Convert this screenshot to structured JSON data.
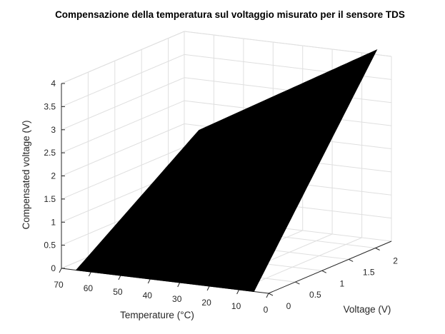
{
  "chart_data": {
    "type": "surface",
    "title": "Compensazione della temperatura sul voltaggio misurato per il sensore TDS",
    "xlabel": "Voltage (V)",
    "ylabel": "Temperature (°C)",
    "zlabel": "Compensated voltage (V)",
    "xlim": [
      0,
      2.3
    ],
    "ylim": [
      0,
      70
    ],
    "zlim": [
      0,
      4
    ],
    "x_ticks": [
      "0",
      "0.5",
      "1",
      "1.5",
      "2"
    ],
    "x_tick_values": [
      0,
      0.5,
      1,
      1.5,
      2
    ],
    "y_ticks": [
      "0",
      "10",
      "20",
      "30",
      "40",
      "50",
      "60",
      "70"
    ],
    "y_tick_values": [
      0,
      10,
      20,
      30,
      40,
      50,
      60,
      70
    ],
    "z_ticks": [
      "0",
      "0.5",
      "1",
      "1.5",
      "2",
      "2.5",
      "3",
      "3.5",
      "4"
    ],
    "z_tick_values": [
      0,
      0.5,
      1,
      1.5,
      2,
      2.5,
      3,
      3.5,
      4
    ],
    "surface": {
      "voltage_range": [
        0,
        2.3
      ],
      "temperature_range": [
        5,
        65
      ],
      "corner_values": [
        {
          "voltage": 0,
          "temperature": 5,
          "compensated": 0
        },
        {
          "voltage": 0,
          "temperature": 65,
          "compensated": 0
        },
        {
          "voltage": 2.3,
          "temperature": 65,
          "compensated": 1.9
        },
        {
          "voltage": 2.3,
          "temperature": 5,
          "compensated": 4.1
        }
      ],
      "color": "#000000"
    },
    "grid": true,
    "background": "#ffffff"
  }
}
